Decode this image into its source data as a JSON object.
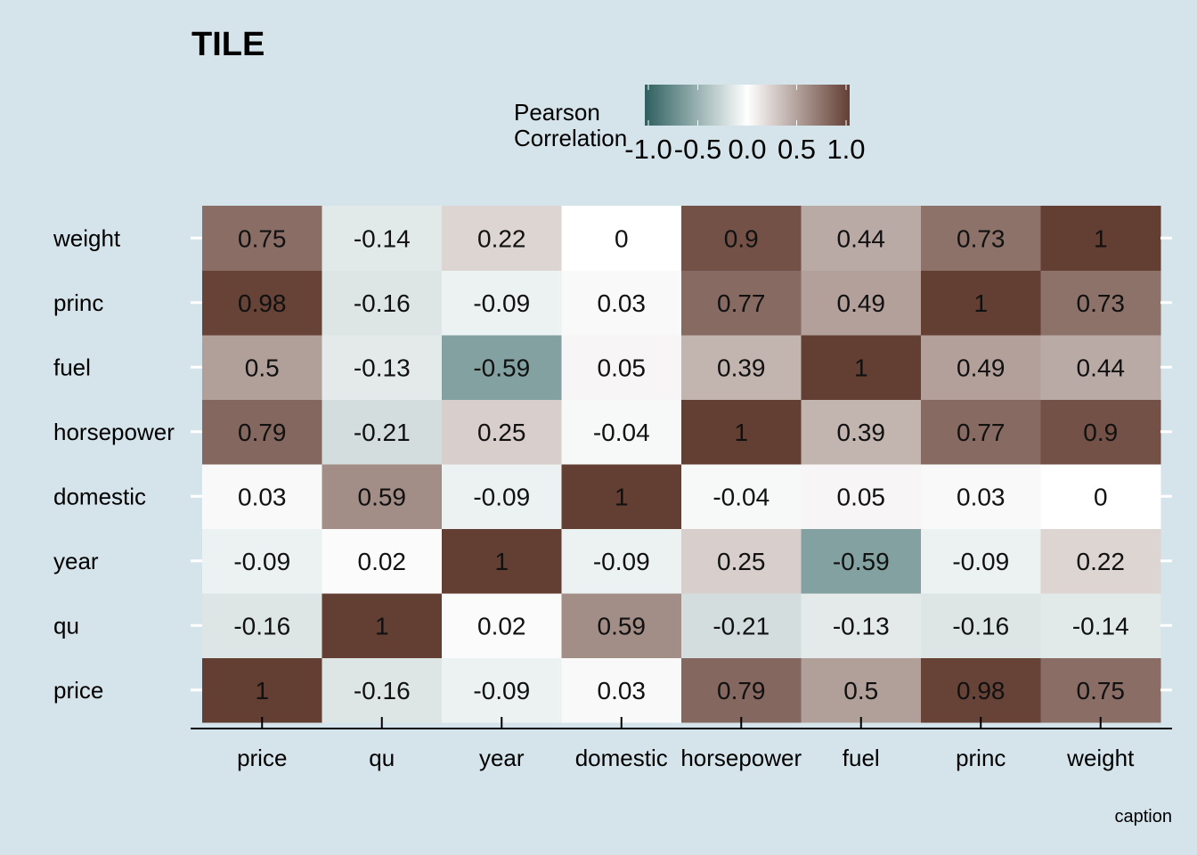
{
  "chart_data": {
    "type": "heatmap",
    "title": "TILE",
    "caption": "caption",
    "legend": {
      "title_lines": [
        "Pearson",
        "Correlation"
      ],
      "range": [
        -1,
        1
      ],
      "ticks": [
        -1.0,
        -0.5,
        0.0,
        0.5,
        1.0
      ],
      "tick_labels": [
        "-1.0",
        "-0.5",
        "0.0",
        "0.5",
        "1.0"
      ],
      "placement": "top",
      "low_color": "#2f5f5f",
      "mid_color": "#ffffff",
      "high_color": "#633e33"
    },
    "x_categories": [
      "price",
      "qu",
      "year",
      "domestic",
      "horsepower",
      "fuel",
      "princ",
      "weight"
    ],
    "y_categories": [
      "price",
      "qu",
      "year",
      "domestic",
      "horsepower",
      "fuel",
      "princ",
      "weight"
    ],
    "matrix": [
      [
        1,
        -0.16,
        -0.09,
        0.03,
        0.79,
        0.5,
        0.98,
        0.75
      ],
      [
        -0.16,
        1,
        0.02,
        0.59,
        -0.21,
        -0.13,
        -0.16,
        -0.14
      ],
      [
        -0.09,
        0.02,
        1,
        -0.09,
        0.25,
        -0.59,
        -0.09,
        0.22
      ],
      [
        0.03,
        0.59,
        -0.09,
        1,
        -0.04,
        0.05,
        0.03,
        0
      ],
      [
        0.79,
        -0.21,
        0.25,
        -0.04,
        1,
        0.39,
        0.77,
        0.9
      ],
      [
        0.5,
        -0.13,
        -0.59,
        0.05,
        0.39,
        1,
        0.49,
        0.44
      ],
      [
        0.98,
        -0.16,
        -0.09,
        0.03,
        0.77,
        0.49,
        1,
        0.73
      ],
      [
        0.75,
        -0.14,
        0.22,
        0,
        0.9,
        0.44,
        0.73,
        1
      ]
    ],
    "grid": false
  }
}
